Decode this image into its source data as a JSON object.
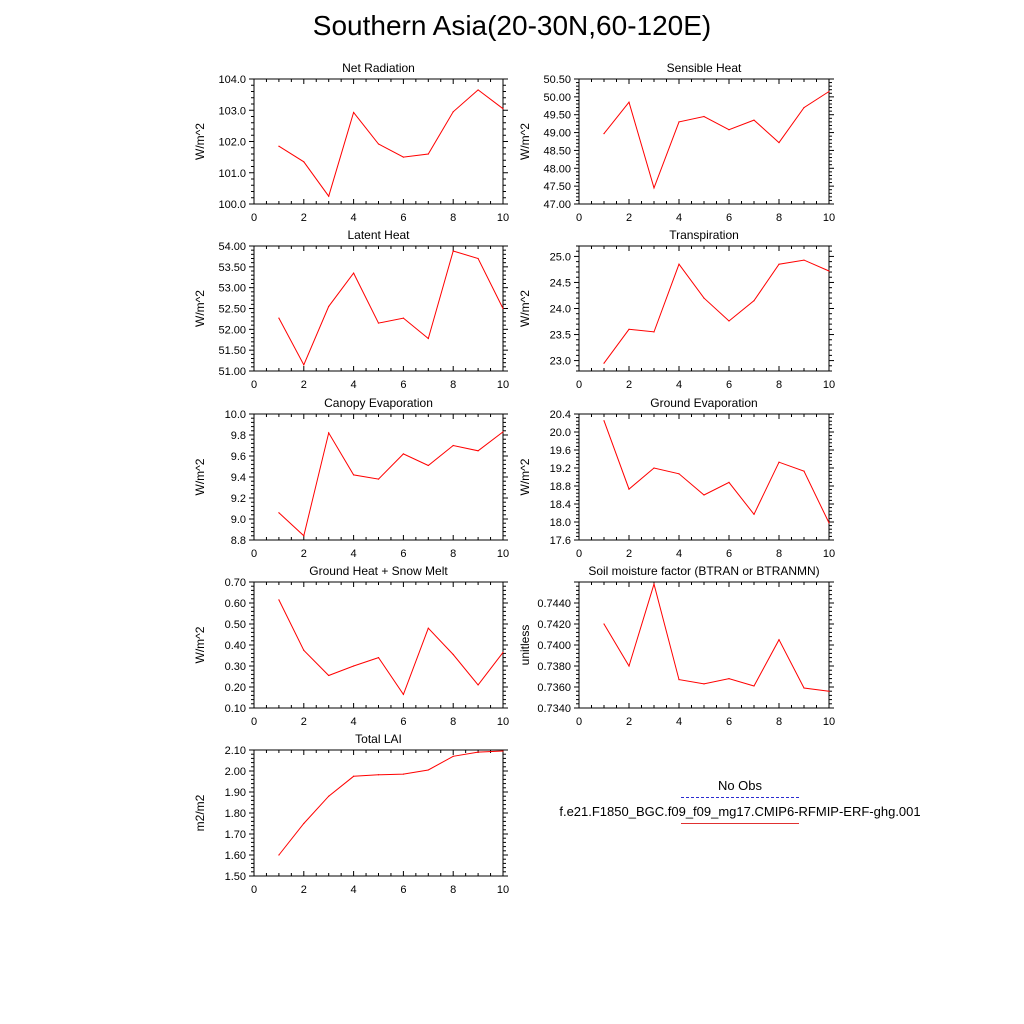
{
  "title": "Southern Asia(20-30N,60-120E)",
  "colors": {
    "model": "#ff0000",
    "obs": "#3333cc",
    "axis": "#000000"
  },
  "legend": {
    "obs_label": "No Obs",
    "model_label": "f.e21.F1850_BGC.f09_f09_mg17.CMIP6-RFMIP-ERF-ghg.001"
  },
  "chart_data": [
    {
      "type": "line",
      "title": "Net Radiation",
      "xlabel": "",
      "ylabel": "W/m^2",
      "xlim": [
        0,
        10
      ],
      "ylim": [
        100.0,
        104.0
      ],
      "xticks": [
        "0",
        "2",
        "4",
        "6",
        "8",
        "10"
      ],
      "yticks": [
        "100.0",
        "101.0",
        "102.0",
        "103.0",
        "104.0"
      ],
      "x": [
        1,
        2,
        3,
        4,
        5,
        6,
        7,
        8,
        9,
        10
      ],
      "series": [
        {
          "values": [
            101.85,
            101.35,
            100.25,
            102.93,
            101.92,
            101.5,
            101.6,
            102.95,
            103.65,
            103.05
          ]
        }
      ]
    },
    {
      "type": "line",
      "title": "Sensible Heat",
      "xlabel": "",
      "ylabel": "W/m^2",
      "xlim": [
        0,
        10
      ],
      "ylim": [
        47.0,
        50.5
      ],
      "xticks": [
        "0",
        "2",
        "4",
        "6",
        "8",
        "10"
      ],
      "yticks": [
        "47.00",
        "47.50",
        "48.00",
        "48.50",
        "49.00",
        "49.50",
        "50.00",
        "50.50"
      ],
      "x": [
        1,
        2,
        3,
        4,
        5,
        6,
        7,
        8,
        9,
        10
      ],
      "series": [
        {
          "values": [
            48.97,
            49.85,
            47.45,
            49.3,
            49.45,
            49.08,
            49.35,
            48.72,
            49.7,
            50.15
          ]
        }
      ]
    },
    {
      "type": "line",
      "title": "Latent Heat",
      "xlabel": "",
      "ylabel": "W/m^2",
      "xlim": [
        0,
        10
      ],
      "ylim": [
        51.0,
        54.0
      ],
      "xticks": [
        "0",
        "2",
        "4",
        "6",
        "8",
        "10"
      ],
      "yticks": [
        "51.00",
        "51.50",
        "52.00",
        "52.50",
        "53.00",
        "53.50",
        "54.00"
      ],
      "x": [
        1,
        2,
        3,
        4,
        5,
        6,
        7,
        8,
        9,
        10
      ],
      "series": [
        {
          "values": [
            52.27,
            51.15,
            52.55,
            53.35,
            52.15,
            52.27,
            51.78,
            53.88,
            53.7,
            52.5
          ]
        }
      ]
    },
    {
      "type": "line",
      "title": "Transpiration",
      "xlabel": "",
      "ylabel": "W/m^2",
      "xlim": [
        0,
        10
      ],
      "ylim": [
        22.8,
        25.2
      ],
      "xticks": [
        "0",
        "2",
        "4",
        "6",
        "8",
        "10"
      ],
      "yticks": [
        "23.0",
        "23.5",
        "24.0",
        "24.5",
        "25.0"
      ],
      "x": [
        1,
        2,
        3,
        4,
        5,
        6,
        7,
        8,
        9,
        10
      ],
      "series": [
        {
          "values": [
            22.95,
            23.6,
            23.55,
            24.85,
            24.2,
            23.76,
            24.15,
            24.85,
            24.93,
            24.72
          ]
        }
      ]
    },
    {
      "type": "line",
      "title": "Canopy Evaporation",
      "xlabel": "",
      "ylabel": "W/m^2",
      "xlim": [
        0,
        10
      ],
      "ylim": [
        8.8,
        10.0
      ],
      "xticks": [
        "0",
        "2",
        "4",
        "6",
        "8",
        "10"
      ],
      "yticks": [
        "8.8",
        "9.0",
        "9.2",
        "9.4",
        "9.6",
        "9.8",
        "10.0"
      ],
      "x": [
        1,
        2,
        3,
        4,
        5,
        6,
        7,
        8,
        9,
        10
      ],
      "series": [
        {
          "values": [
            9.06,
            8.84,
            9.82,
            9.42,
            9.38,
            9.62,
            9.51,
            9.7,
            9.65,
            9.83
          ]
        }
      ]
    },
    {
      "type": "line",
      "title": "Ground Evaporation",
      "xlabel": "",
      "ylabel": "W/m^2",
      "xlim": [
        0,
        10
      ],
      "ylim": [
        17.6,
        20.4
      ],
      "xticks": [
        "0",
        "2",
        "4",
        "6",
        "8",
        "10"
      ],
      "yticks": [
        "17.6",
        "18.0",
        "18.4",
        "18.8",
        "19.2",
        "19.6",
        "20.0",
        "20.4"
      ],
      "x": [
        1,
        2,
        3,
        4,
        5,
        6,
        7,
        8,
        9,
        10
      ],
      "series": [
        {
          "values": [
            20.25,
            18.73,
            19.2,
            19.07,
            18.6,
            18.88,
            18.17,
            19.33,
            19.13,
            17.98
          ]
        }
      ]
    },
    {
      "type": "line",
      "title": "Ground Heat + Snow Melt",
      "xlabel": "",
      "ylabel": "W/m^2",
      "xlim": [
        0,
        10
      ],
      "ylim": [
        0.1,
        0.7
      ],
      "xticks": [
        "0",
        "2",
        "4",
        "6",
        "8",
        "10"
      ],
      "yticks": [
        "0.10",
        "0.20",
        "0.30",
        "0.40",
        "0.50",
        "0.60",
        "0.70"
      ],
      "x": [
        1,
        2,
        3,
        4,
        5,
        6,
        7,
        8,
        9,
        10
      ],
      "series": [
        {
          "values": [
            0.615,
            0.375,
            0.255,
            0.3,
            0.34,
            0.165,
            0.48,
            0.355,
            0.21,
            0.365
          ]
        }
      ]
    },
    {
      "type": "line",
      "title": "Soil moisture factor (BTRAN or BTRANMN)",
      "xlabel": "",
      "ylabel": "unitless",
      "xlim": [
        0,
        10
      ],
      "ylim": [
        0.734,
        0.746
      ],
      "xticks": [
        "0",
        "2",
        "4",
        "6",
        "8",
        "10"
      ],
      "yticks": [
        "0.7340",
        "0.7360",
        "0.7380",
        "0.7400",
        "0.7420",
        "0.7440"
      ],
      "x": [
        1,
        2,
        3,
        4,
        5,
        6,
        7,
        8,
        9,
        10
      ],
      "series": [
        {
          "values": [
            0.742,
            0.738,
            0.7458,
            0.7367,
            0.7363,
            0.7368,
            0.7361,
            0.7405,
            0.7359,
            0.7356
          ]
        }
      ]
    },
    {
      "type": "line",
      "title": "Total LAI",
      "xlabel": "",
      "ylabel": "m2/m2",
      "xlim": [
        0,
        10
      ],
      "ylim": [
        1.5,
        2.1
      ],
      "xticks": [
        "0",
        "2",
        "4",
        "6",
        "8",
        "10"
      ],
      "yticks": [
        "1.50",
        "1.60",
        "1.70",
        "1.80",
        "1.90",
        "2.00",
        "2.10"
      ],
      "x": [
        1,
        2,
        3,
        4,
        5,
        6,
        7,
        8,
        9,
        10
      ],
      "series": [
        {
          "values": [
            1.6,
            1.75,
            1.88,
            1.975,
            1.982,
            1.985,
            2.005,
            2.07,
            2.09,
            2.095
          ]
        }
      ]
    }
  ]
}
